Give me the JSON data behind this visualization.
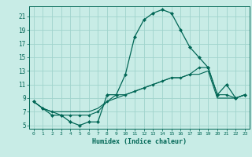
{
  "xlabel": "Humidex (Indice chaleur)",
  "ylabel": "",
  "bg_color": "#c8ece6",
  "grid_color": "#a0d4cc",
  "line_color": "#006655",
  "ylim": [
    4.5,
    22.5
  ],
  "xlim": [
    -0.5,
    23.5
  ],
  "yticks": [
    5,
    7,
    9,
    11,
    13,
    15,
    17,
    19,
    21
  ],
  "xticks": [
    0,
    1,
    2,
    3,
    4,
    5,
    6,
    7,
    8,
    9,
    10,
    11,
    12,
    13,
    14,
    15,
    16,
    17,
    18,
    19,
    20,
    21,
    22,
    23
  ],
  "line1_y": [
    8.5,
    7.5,
    6.5,
    6.5,
    5.5,
    5.0,
    5.5,
    5.5,
    9.5,
    9.5,
    12.5,
    18.0,
    20.5,
    21.5,
    22.0,
    21.5,
    19.0,
    16.5,
    15.0,
    13.5,
    9.5,
    11.0,
    9.0,
    9.5
  ],
  "line2_y": [
    8.5,
    7.5,
    7.0,
    6.5,
    6.5,
    6.5,
    6.5,
    7.0,
    8.5,
    9.5,
    9.5,
    10.0,
    10.5,
    11.0,
    11.5,
    12.0,
    12.0,
    12.5,
    13.5,
    13.5,
    9.5,
    9.5,
    9.0,
    9.5
  ],
  "line3_y": [
    8.5,
    7.5,
    7.0,
    7.0,
    7.0,
    7.0,
    7.0,
    7.5,
    8.5,
    9.0,
    9.5,
    10.0,
    10.5,
    11.0,
    11.5,
    12.0,
    12.0,
    12.5,
    12.5,
    13.0,
    9.0,
    9.0,
    9.0,
    9.5
  ]
}
